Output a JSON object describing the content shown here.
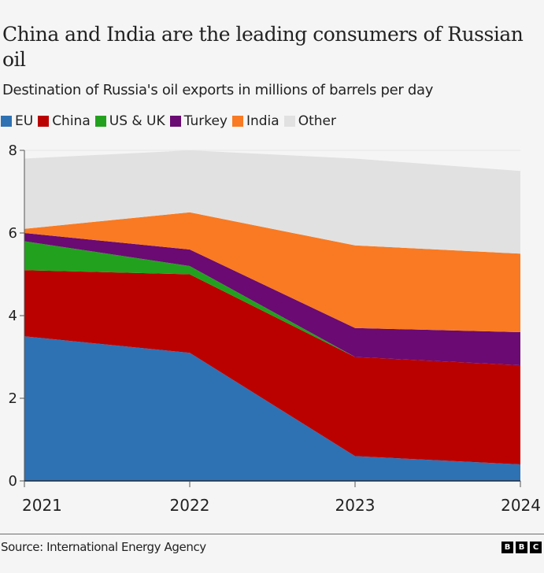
{
  "header": {
    "title": "China and India are the leading consumers of Russian oil",
    "subtitle": "Destination of Russia's oil exports in millions of barrels per day"
  },
  "legend": [
    {
      "label": "EU",
      "color": "#2e72b4"
    },
    {
      "label": "China",
      "color": "#bb0000"
    },
    {
      "label": "US & UK",
      "color": "#22a11e"
    },
    {
      "label": "Turkey",
      "color": "#6b0a73"
    },
    {
      "label": "India",
      "color": "#f97a22"
    },
    {
      "label": "Other",
      "color": "#e1e1e1"
    }
  ],
  "chart_data": {
    "type": "area",
    "stacked": true,
    "title": "China and India are the leading consumers of Russian oil",
    "subtitle": "Destination of Russia's oil exports in millions of barrels per day",
    "xlabel": "",
    "ylabel": "",
    "x": [
      "2021",
      "2022",
      "2023",
      "2024"
    ],
    "ylim": [
      0,
      8
    ],
    "yticks": [
      0,
      2,
      4,
      6,
      8
    ],
    "grid": false,
    "legend_position": "top-left",
    "series": [
      {
        "name": "EU",
        "color": "#2e72b4",
        "values": [
          3.5,
          3.1,
          0.6,
          0.4
        ]
      },
      {
        "name": "China",
        "color": "#bb0000",
        "values": [
          1.6,
          1.9,
          2.4,
          2.4
        ]
      },
      {
        "name": "US & UK",
        "color": "#22a11e",
        "values": [
          0.7,
          0.2,
          0.0,
          0.0
        ]
      },
      {
        "name": "Turkey",
        "color": "#6b0a73",
        "values": [
          0.2,
          0.4,
          0.7,
          0.8
        ]
      },
      {
        "name": "India",
        "color": "#f97a22",
        "values": [
          0.1,
          0.9,
          2.0,
          1.9
        ]
      },
      {
        "name": "Other",
        "color": "#e1e1e1",
        "values": [
          1.7,
          1.5,
          2.1,
          2.0
        ]
      }
    ]
  },
  "footer": {
    "source": "Source: International Energy Agency",
    "logo_letters": [
      "B",
      "B",
      "C"
    ]
  }
}
